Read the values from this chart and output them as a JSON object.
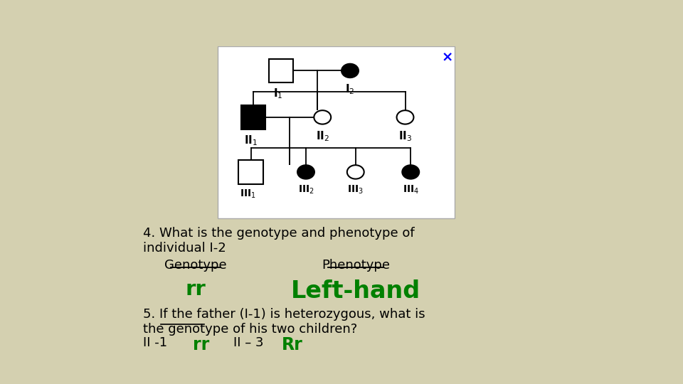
{
  "bg_color": "#d4d0b0",
  "pedigree_bg": "#ffffff",
  "title_text": "4. What is the genotype and phenotype of\nindividual I-2",
  "genotype_label": "Genotype",
  "phenotype_label": "Phenotype",
  "genotype_value": "rr",
  "phenotype_value": "Left-hand",
  "q5_text": "5. If the father (I-1) is heterozygous, what is\nthe genotype of his two children?",
  "green_color": "#008000",
  "black_color": "#000000",
  "underline_word": "genotype"
}
